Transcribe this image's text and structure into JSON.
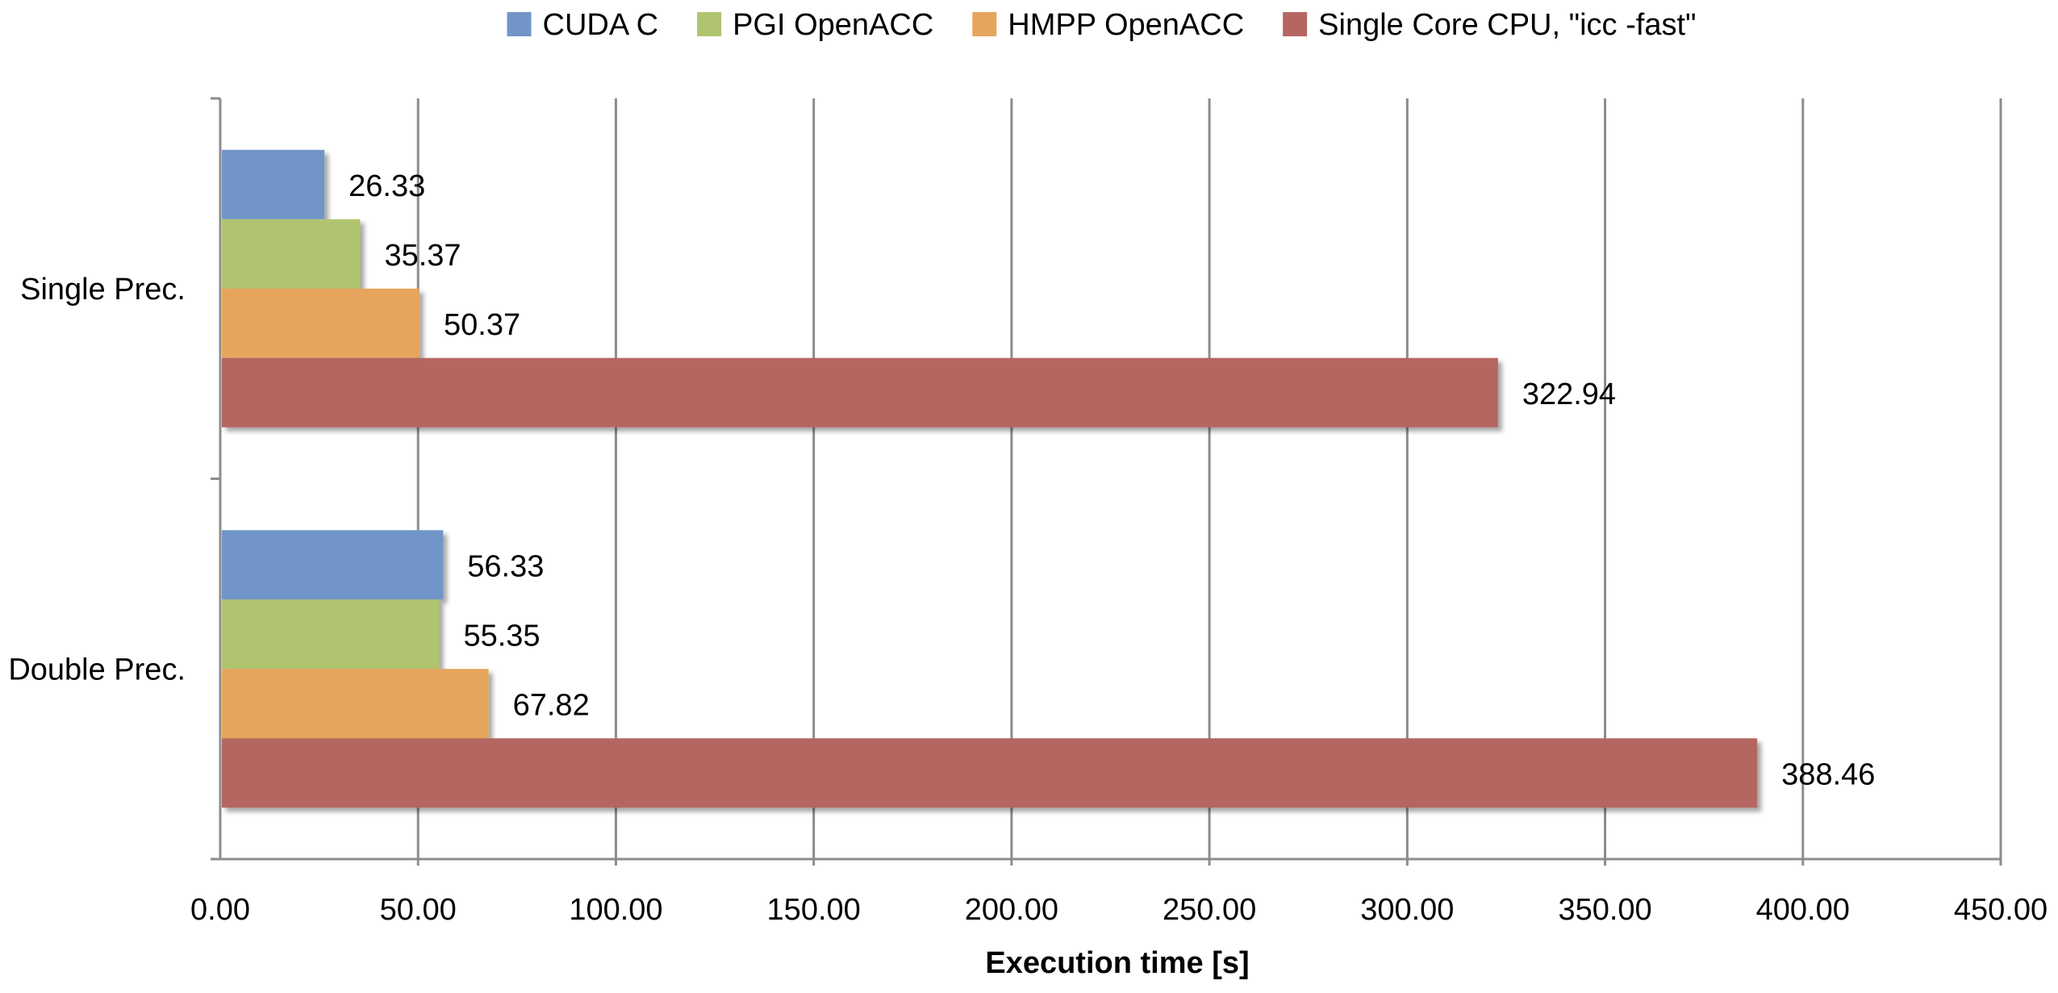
{
  "chart_data": {
    "type": "bar",
    "orientation": "horizontal",
    "categories": [
      "Single Prec.",
      "Double Prec."
    ],
    "series": [
      {
        "name": "CUDA C",
        "color": "#7295c8",
        "values": [
          26.33,
          56.33
        ],
        "labels": [
          "26.33",
          "56.33"
        ]
      },
      {
        "name": "PGI OpenACC",
        "color": "#b0c470",
        "values": [
          35.37,
          55.35
        ],
        "labels": [
          "35.37",
          "55.35"
        ]
      },
      {
        "name": "HMPP OpenACC",
        "color": "#e6a55c",
        "values": [
          50.37,
          67.82
        ],
        "labels": [
          "50.37",
          "67.82"
        ]
      },
      {
        "name": "Single Core CPU, \"icc -fast\"",
        "color": "#b56661",
        "values": [
          322.94,
          388.46
        ],
        "labels": [
          "322.94",
          "388.46"
        ]
      }
    ],
    "xlabel": "Execution time [s]",
    "xlim": [
      0,
      450
    ],
    "xticks": [
      0,
      50,
      100,
      150,
      200,
      250,
      300,
      350,
      400,
      450
    ],
    "xtick_labels": [
      "0.00",
      "50.00",
      "100.00",
      "150.00",
      "200.00",
      "250.00",
      "300.00",
      "350.00",
      "400.00",
      "450.00"
    ],
    "grid": "vertical",
    "legend_position": "top"
  }
}
